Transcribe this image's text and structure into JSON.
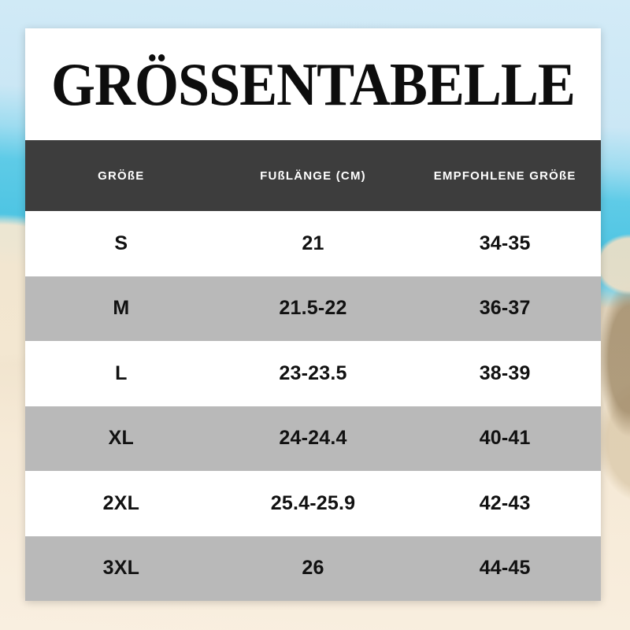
{
  "title": "GRÖSSENTABELLE",
  "chart_data": {
    "type": "table",
    "title": "GRÖSSENTABELLE",
    "columns": [
      "GRÖßE",
      "FUßLÄNGE (CM)",
      "EMPFOHLENE GRÖßE"
    ],
    "rows": [
      [
        "S",
        "21",
        "34-35"
      ],
      [
        "M",
        "21.5-22",
        "36-37"
      ],
      [
        "L",
        "23-23.5",
        "38-39"
      ],
      [
        "XL",
        "24-24.4",
        "40-41"
      ],
      [
        "2XL",
        "25.4-25.9",
        "42-43"
      ],
      [
        "3XL",
        "26",
        "44-45"
      ]
    ]
  },
  "colors": {
    "header_bg": "#3d3d3d",
    "header_text": "#ffffff",
    "row_alt_bg": "#b9b9b9",
    "row_bg": "#ffffff",
    "title_text": "#0d0d0d",
    "cell_text": "#111111",
    "sky": "#cde9f6",
    "sea": "#55c7e4",
    "sand": "#f6ead7"
  }
}
